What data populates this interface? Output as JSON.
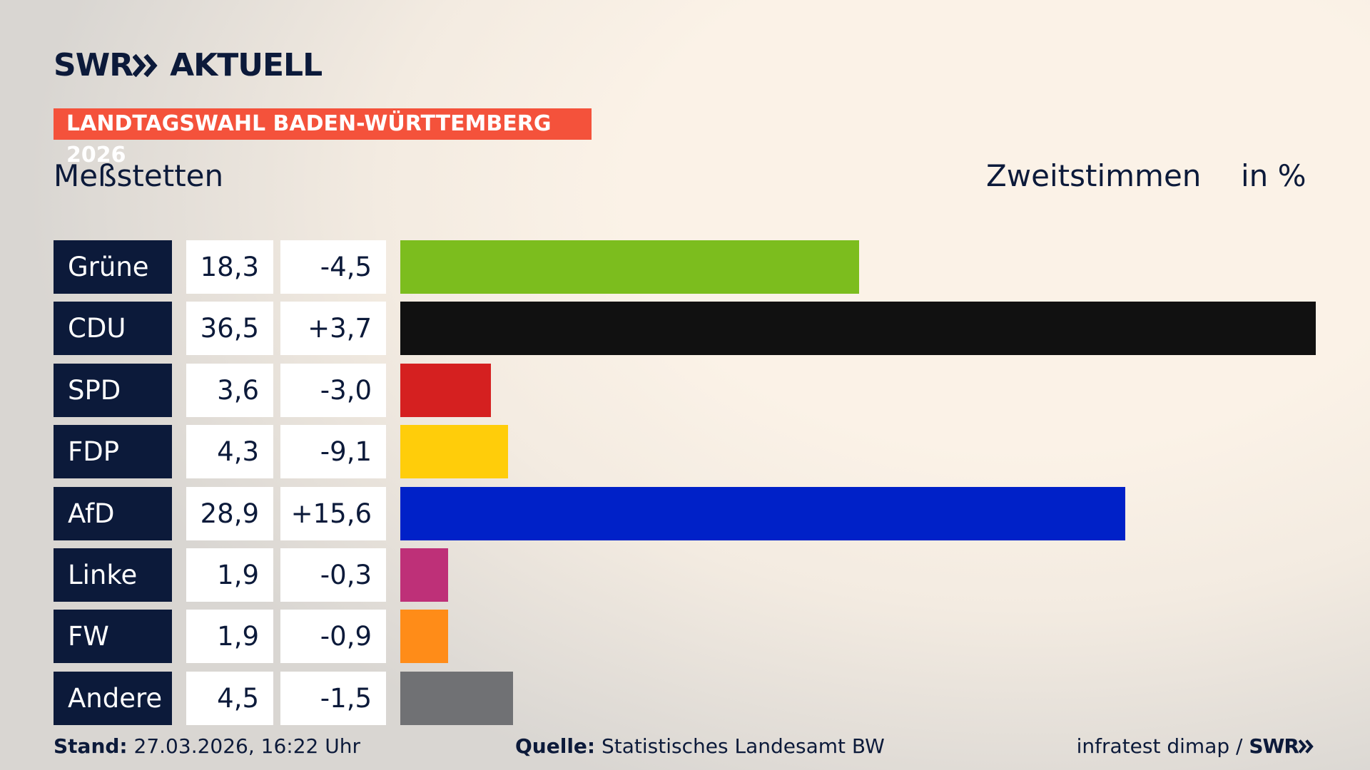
{
  "brand": {
    "name": "SWR",
    "product": "AKTUELL"
  },
  "chart_data": {
    "type": "bar",
    "banner": "LANDTAGSWAHL BADEN-WÜRTTEMBERG 2026",
    "title": "Meßstetten",
    "measure": "Zweitstimmen",
    "unit": "in %",
    "categories": [
      "Grüne",
      "CDU",
      "SPD",
      "FDP",
      "AfD",
      "Linke",
      "FW",
      "Andere"
    ],
    "values": [
      18.3,
      36.5,
      3.6,
      4.3,
      28.9,
      1.9,
      1.9,
      4.5
    ],
    "value_labels": [
      "18,3",
      "36,5",
      "3,6",
      "4,3",
      "28,9",
      "1,9",
      "1,9",
      "4,5"
    ],
    "changes": [
      -4.5,
      3.7,
      -3.0,
      -9.1,
      15.6,
      -0.3,
      -0.9,
      -1.5
    ],
    "change_labels": [
      "-4,5",
      "+3,7",
      "-3,0",
      "-9,1",
      "+15,6",
      "-0,3",
      "-0,9",
      "-1,5"
    ],
    "colors": [
      "#7cbd1e",
      "#111111",
      "#d52020",
      "#ffcd0a",
      "#0021c8",
      "#be3078",
      "#ff8c18",
      "#707174"
    ]
  },
  "footer": {
    "stand_label": "Stand:",
    "stand": "27.03.2026, 16:22 Uhr",
    "source_label": "Quelle:",
    "source": "Statistisches Landesamt BW",
    "credit": "infratest dimap /",
    "credit_brand": "SWR"
  }
}
